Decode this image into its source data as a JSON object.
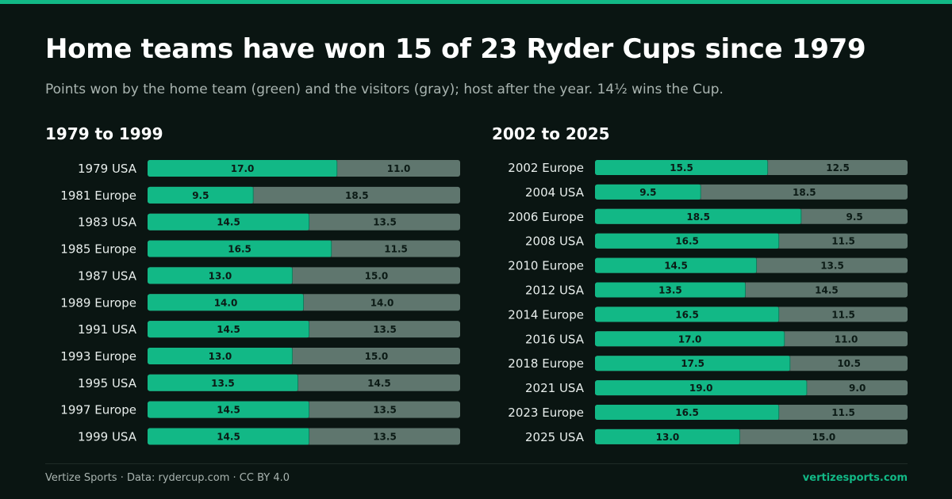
{
  "title": "Home teams have won 15 of 23 Ryder Cups since 1979",
  "subtitle": "Points won by the home team (green) and the visitors (gray); host after the year. 14½ wins the Cup.",
  "colors": {
    "home": "#12b886",
    "visitor": "#5f766e",
    "accent": "#12b886",
    "background": "#0a1512"
  },
  "footer": {
    "source": "Vertize Sports · Data: rydercup.com · CC BY 4.0",
    "site": "vertizesports.com"
  },
  "chart_data": [
    {
      "type": "bar",
      "orientation": "horizontal",
      "stacked": true,
      "title": "1979 to 1999",
      "xlim": [
        0,
        28
      ],
      "categories": [
        "1979 USA",
        "1981 Europe",
        "1983 USA",
        "1985 Europe",
        "1987 USA",
        "1989 Europe",
        "1991 USA",
        "1993 Europe",
        "1995 USA",
        "1997 Europe",
        "1999 USA"
      ],
      "series": [
        {
          "values": [
            17.0,
            9.5,
            14.5,
            16.5,
            13.0,
            14.0,
            14.5,
            13.0,
            13.5,
            14.5,
            14.5
          ],
          "color": "#12b886"
        },
        {
          "values": [
            11.0,
            18.5,
            13.5,
            11.5,
            15.0,
            14.0,
            13.5,
            15.0,
            14.5,
            13.5,
            13.5
          ],
          "color": "#5f766e"
        }
      ]
    },
    {
      "type": "bar",
      "orientation": "horizontal",
      "stacked": true,
      "title": "2002 to 2025",
      "xlim": [
        0,
        28
      ],
      "categories": [
        "2002 Europe",
        "2004 USA",
        "2006 Europe",
        "2008 USA",
        "2010 Europe",
        "2012 USA",
        "2014 Europe",
        "2016 USA",
        "2018 Europe",
        "2021 USA",
        "2023 Europe",
        "2025 USA"
      ],
      "series": [
        {
          "values": [
            15.5,
            9.5,
            18.5,
            16.5,
            14.5,
            13.5,
            16.5,
            17.0,
            17.5,
            19.0,
            16.5,
            13.0
          ],
          "color": "#12b886"
        },
        {
          "values": [
            12.5,
            18.5,
            9.5,
            11.5,
            13.5,
            14.5,
            11.5,
            11.0,
            10.5,
            9.0,
            11.5,
            15.0
          ],
          "color": "#5f766e"
        }
      ]
    }
  ]
}
